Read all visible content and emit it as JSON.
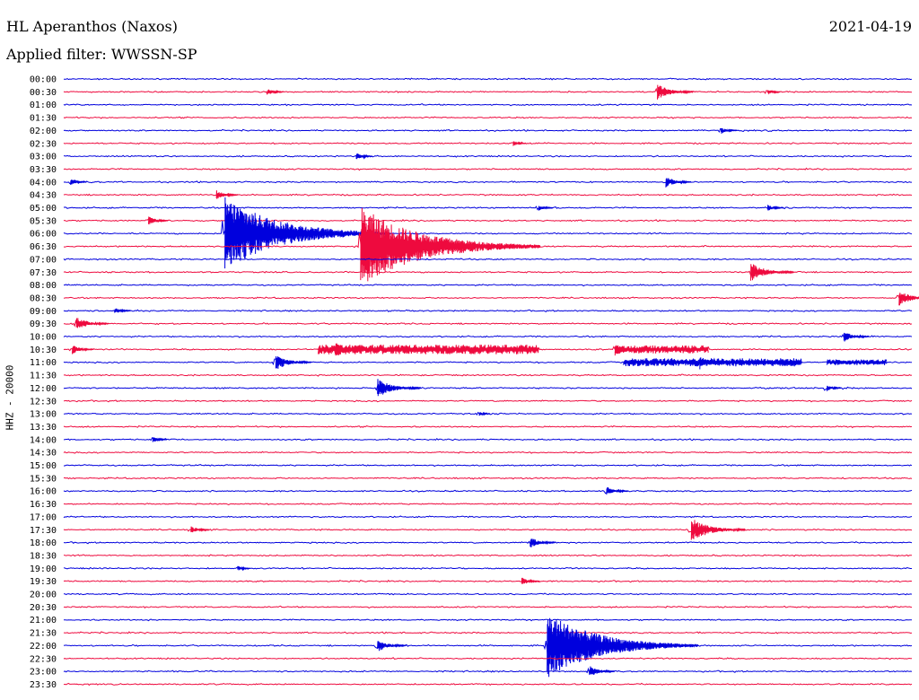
{
  "header": {
    "station": "HL Aperanthos (Naxos)",
    "date": "2021-04-19",
    "filter_label": "Applied filter:",
    "filter_value": "WWSSN-SP"
  },
  "axis": {
    "ylabel": "HHZ - 20000"
  },
  "colors": {
    "trace_a": "#0000dd",
    "trace_b": "#ee0a3e",
    "text": "#000000",
    "background": "#ffffff"
  },
  "chart_data": {
    "type": "line",
    "title": "HL Aperanthos (Naxos)",
    "subtitle": "Applied filter: WWSSN-SP",
    "ylabel": "HHZ - 20000",
    "xlabel": "",
    "grid": false,
    "row_interval_minutes": 30,
    "row_labels": [
      "00:00",
      "00:30",
      "01:00",
      "01:30",
      "02:00",
      "02:30",
      "03:00",
      "03:30",
      "04:00",
      "04:30",
      "05:00",
      "05:30",
      "06:00",
      "06:30",
      "07:00",
      "07:30",
      "08:00",
      "08:30",
      "09:00",
      "09:30",
      "10:00",
      "10:30",
      "11:00",
      "11:30",
      "12:00",
      "12:30",
      "13:00",
      "13:30",
      "14:00",
      "14:30",
      "15:00",
      "15:30",
      "16:00",
      "16:30",
      "17:00",
      "17:30",
      "18:00",
      "18:30",
      "19:00",
      "19:30",
      "20:00",
      "20:30",
      "21:00",
      "21:30",
      "22:00",
      "22:30",
      "23:00",
      "23:30"
    ],
    "series_colors": [
      "#0000dd",
      "#ee0a3e"
    ],
    "events": [
      {
        "row": "00:30",
        "x_frac": 0.7,
        "amp": 1.0
      },
      {
        "row": "00:30",
        "x_frac": 0.24,
        "amp": 0.45
      },
      {
        "row": "00:30",
        "x_frac": 0.83,
        "amp": 0.35
      },
      {
        "row": "02:00",
        "x_frac": 0.775,
        "amp": 0.45
      },
      {
        "row": "02:30",
        "x_frac": 0.53,
        "amp": 0.35
      },
      {
        "row": "03:00",
        "x_frac": 0.345,
        "amp": 0.45
      },
      {
        "row": "04:00",
        "x_frac": 0.008,
        "amp": 0.45
      },
      {
        "row": "04:00",
        "x_frac": 0.71,
        "amp": 0.7
      },
      {
        "row": "04:30",
        "x_frac": 0.18,
        "amp": 0.6
      },
      {
        "row": "05:00",
        "x_frac": 0.56,
        "amp": 0.4
      },
      {
        "row": "05:00",
        "x_frac": 0.83,
        "amp": 0.45
      },
      {
        "row": "05:30",
        "x_frac": 0.1,
        "amp": 0.55
      },
      {
        "row": "06:00",
        "x_frac": 0.19,
        "amp": 4.6
      },
      {
        "row": "06:30",
        "x_frac": 0.35,
        "amp": 5.0
      },
      {
        "row": "07:30",
        "x_frac": 0.81,
        "amp": 1.2
      },
      {
        "row": "08:30",
        "x_frac": 0.985,
        "amp": 1.0
      },
      {
        "row": "09:00",
        "x_frac": 0.06,
        "amp": 0.45
      },
      {
        "row": "09:30",
        "x_frac": 0.015,
        "amp": 0.9
      },
      {
        "row": "10:00",
        "x_frac": 0.92,
        "amp": 0.7
      },
      {
        "row": "10:30",
        "x_frac": 0.01,
        "amp": 0.6
      },
      {
        "row": "10:30",
        "x_frac": 0.32,
        "amp": 1.0
      },
      {
        "row": "10:30",
        "x_frac": 0.65,
        "amp": 0.8
      },
      {
        "row": "11:00",
        "x_frac": 0.25,
        "amp": 1.0
      },
      {
        "row": "11:00",
        "x_frac": 0.75,
        "amp": 0.9
      },
      {
        "row": "12:00",
        "x_frac": 0.37,
        "amp": 1.2
      },
      {
        "row": "12:00",
        "x_frac": 0.9,
        "amp": 0.4
      },
      {
        "row": "13:00",
        "x_frac": 0.49,
        "amp": 0.3
      },
      {
        "row": "14:00",
        "x_frac": 0.105,
        "amp": 0.4
      },
      {
        "row": "16:00",
        "x_frac": 0.64,
        "amp": 0.6
      },
      {
        "row": "17:30",
        "x_frac": 0.74,
        "amp": 1.5
      },
      {
        "row": "17:30",
        "x_frac": 0.15,
        "amp": 0.5
      },
      {
        "row": "18:00",
        "x_frac": 0.55,
        "amp": 0.7
      },
      {
        "row": "19:00",
        "x_frac": 0.205,
        "amp": 0.35
      },
      {
        "row": "19:30",
        "x_frac": 0.54,
        "amp": 0.5
      },
      {
        "row": "22:00",
        "x_frac": 0.57,
        "amp": 4.2
      },
      {
        "row": "22:00",
        "x_frac": 0.37,
        "amp": 0.8
      },
      {
        "row": "22:00",
        "x_frac": 0.62,
        "amp": 1.0
      },
      {
        "row": "23:00",
        "x_frac": 0.62,
        "amp": 0.7
      }
    ],
    "tremor_segments": [
      {
        "row": "10:30",
        "x0_frac": 0.3,
        "x1_frac": 0.56,
        "amp": 0.6
      },
      {
        "row": "10:30",
        "x0_frac": 0.65,
        "x1_frac": 0.76,
        "amp": 0.5
      },
      {
        "row": "11:00",
        "x0_frac": 0.66,
        "x1_frac": 0.87,
        "amp": 0.5
      },
      {
        "row": "11:00",
        "x0_frac": 0.9,
        "x1_frac": 0.97,
        "amp": 0.35
      }
    ]
  }
}
